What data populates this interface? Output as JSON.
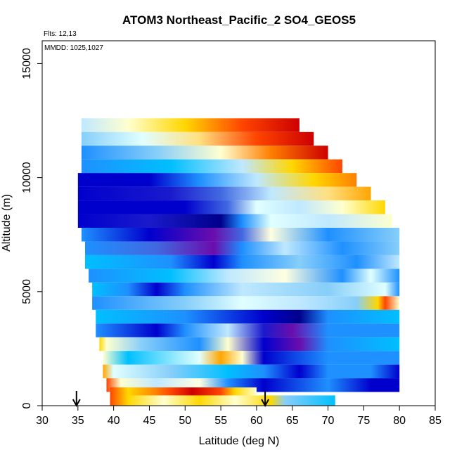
{
  "chart_data": {
    "type": "heatmap",
    "title": "ATOM3 Northeast_Pacific_2 SO4_GEOS5",
    "flights_label": "Flts: 12,13",
    "dates_label": "MMDD: 1025,1027",
    "xlabel": "Latitude (deg N)",
    "ylabel": "Altitude (m)",
    "xlim": [
      30,
      85
    ],
    "ylim": [
      0,
      16000
    ],
    "x_ticks": [
      30,
      35,
      40,
      45,
      50,
      55,
      60,
      65,
      70,
      75,
      80,
      85
    ],
    "y_ticks": [
      0,
      5000,
      10000,
      15000
    ],
    "grid": false,
    "legend": "none",
    "colors": {
      "very_low": "#0000cd",
      "low": "#1e90ff",
      "mid_low": "#00bfff",
      "mid": "#e0ffff",
      "mid_high": "#ffd700",
      "high": "#ff4500",
      "very_high": "#cd0000",
      "dark_purple": "#6a0dad"
    },
    "track_markers": [
      {
        "latitude": 34.8,
        "altitude": 0
      },
      {
        "latitude": 61.2,
        "altitude": 0
      }
    ],
    "rows": [
      {
        "altitude": 12300,
        "lat_min": 35.5,
        "lat_max": 66.0,
        "stops": [
          [
            35.5,
            "#bfe8ff"
          ],
          [
            42,
            "#ffffd0"
          ],
          [
            50,
            "#ffd700"
          ],
          [
            58,
            "#ff4500"
          ],
          [
            66,
            "#cd0000"
          ]
        ]
      },
      {
        "altitude": 11700,
        "lat_min": 35.5,
        "lat_max": 68.0,
        "stops": [
          [
            35.5,
            "#87cefa"
          ],
          [
            44,
            "#e0ffff"
          ],
          [
            52,
            "#ffe080"
          ],
          [
            60,
            "#ff4500"
          ],
          [
            68,
            "#cd0000"
          ]
        ]
      },
      {
        "altitude": 11100,
        "lat_min": 35.5,
        "lat_max": 70.0,
        "stops": [
          [
            35.5,
            "#1e90ff"
          ],
          [
            46,
            "#87cefa"
          ],
          [
            55,
            "#ffffd0"
          ],
          [
            62,
            "#ff7f00"
          ],
          [
            70,
            "#cd0000"
          ]
        ]
      },
      {
        "altitude": 10500,
        "lat_min": 35.5,
        "lat_max": 72.0,
        "stops": [
          [
            35.5,
            "#1e90ff"
          ],
          [
            48,
            "#00bfff"
          ],
          [
            58,
            "#bfe8ff"
          ],
          [
            65,
            "#ffd700"
          ],
          [
            72,
            "#ff4500"
          ]
        ]
      },
      {
        "altitude": 9900,
        "lat_min": 35.0,
        "lat_max": 74.0,
        "stops": [
          [
            35,
            "#0000cd"
          ],
          [
            45,
            "#0000cd"
          ],
          [
            52,
            "#1e90ff"
          ],
          [
            60,
            "#bfe8ff"
          ],
          [
            68,
            "#ffd700"
          ],
          [
            74,
            "#ff7f00"
          ]
        ]
      },
      {
        "altitude": 9300,
        "lat_min": 35.0,
        "lat_max": 76.0,
        "stops": [
          [
            35,
            "#0000cd"
          ],
          [
            48,
            "#1a1acd"
          ],
          [
            55,
            "#4169e1"
          ],
          [
            62,
            "#bfe8ff"
          ],
          [
            70,
            "#ffe080"
          ],
          [
            76,
            "#ffa500"
          ]
        ]
      },
      {
        "altitude": 8700,
        "lat_min": 35.0,
        "lat_max": 78.0,
        "stops": [
          [
            35,
            "#0000cd"
          ],
          [
            50,
            "#0000cd"
          ],
          [
            56,
            "#4169e1"
          ],
          [
            60,
            "#e0ffff"
          ],
          [
            66,
            "#bfe8ff"
          ],
          [
            72,
            "#ffffd0"
          ],
          [
            78,
            "#ffd700"
          ]
        ]
      },
      {
        "altitude": 8100,
        "lat_min": 35.0,
        "lat_max": 79.0,
        "stops": [
          [
            35,
            "#0000cd"
          ],
          [
            45,
            "#1a1acd"
          ],
          [
            55,
            "#00008b"
          ],
          [
            58,
            "#1e90ff"
          ],
          [
            62,
            "#e0ffff"
          ],
          [
            70,
            "#bfe8ff"
          ],
          [
            79,
            "#ffffd0"
          ]
        ]
      },
      {
        "altitude": 7500,
        "lat_min": 35.5,
        "lat_max": 80.0,
        "stops": [
          [
            35.5,
            "#1e90ff"
          ],
          [
            45,
            "#0000cd"
          ],
          [
            54,
            "#6a0dad"
          ],
          [
            58,
            "#4169e1"
          ],
          [
            62,
            "#ffffe0"
          ],
          [
            70,
            "#1e90ff"
          ],
          [
            80,
            "#87cefa"
          ]
        ]
      },
      {
        "altitude": 6900,
        "lat_min": 36.0,
        "lat_max": 80.0,
        "stops": [
          [
            36,
            "#1e90ff"
          ],
          [
            46,
            "#4169e1"
          ],
          [
            54,
            "#6a0dad"
          ],
          [
            58,
            "#1e90ff"
          ],
          [
            64,
            "#bfe8ff"
          ],
          [
            72,
            "#1e90ff"
          ],
          [
            80,
            "#87cefa"
          ]
        ]
      },
      {
        "altitude": 6300,
        "lat_min": 36.0,
        "lat_max": 80.0,
        "stops": [
          [
            36,
            "#00bfff"
          ],
          [
            48,
            "#1e90ff"
          ],
          [
            54,
            "#0000cd"
          ],
          [
            58,
            "#1e90ff"
          ],
          [
            66,
            "#87cefa"
          ],
          [
            74,
            "#1e90ff"
          ],
          [
            80,
            "#bfe8ff"
          ]
        ]
      },
      {
        "altitude": 5700,
        "lat_min": 36.5,
        "lat_max": 80.0,
        "stops": [
          [
            36.5,
            "#1e90ff"
          ],
          [
            48,
            "#00bfff"
          ],
          [
            56,
            "#bfe8ff"
          ],
          [
            64,
            "#ffffe0"
          ],
          [
            72,
            "#1e90ff"
          ],
          [
            76,
            "#e0ffff"
          ],
          [
            80,
            "#1e90ff"
          ]
        ]
      },
      {
        "altitude": 5100,
        "lat_min": 37.0,
        "lat_max": 80.0,
        "stops": [
          [
            37,
            "#00bfff"
          ],
          [
            42,
            "#1e90ff"
          ],
          [
            46,
            "#0000cd"
          ],
          [
            50,
            "#1e90ff"
          ],
          [
            58,
            "#bfe8ff"
          ],
          [
            70,
            "#87cefa"
          ],
          [
            78,
            "#e0ffff"
          ],
          [
            80,
            "#1e90ff"
          ]
        ]
      },
      {
        "altitude": 4500,
        "lat_min": 37.0,
        "lat_max": 80.0,
        "stops": [
          [
            37,
            "#1e90ff"
          ],
          [
            50,
            "#87cefa"
          ],
          [
            58,
            "#e0ffff"
          ],
          [
            66,
            "#bfe8ff"
          ],
          [
            74,
            "#87cefa"
          ],
          [
            77,
            "#ffd700"
          ],
          [
            78,
            "#ff4500"
          ],
          [
            80,
            "#ffffd0"
          ]
        ]
      },
      {
        "altitude": 3900,
        "lat_min": 37.5,
        "lat_max": 80.0,
        "stops": [
          [
            37.5,
            "#00bfff"
          ],
          [
            50,
            "#1e90ff"
          ],
          [
            61,
            "#0000cd"
          ],
          [
            66,
            "#00008b"
          ],
          [
            70,
            "#1e90ff"
          ],
          [
            80,
            "#00bfff"
          ]
        ]
      },
      {
        "altitude": 3300,
        "lat_min": 37.5,
        "lat_max": 80.0,
        "stops": [
          [
            37.5,
            "#1e90ff"
          ],
          [
            46,
            "#0000cd"
          ],
          [
            50,
            "#1e90ff"
          ],
          [
            56,
            "#bfe8ff"
          ],
          [
            61,
            "#1a1acd"
          ],
          [
            65,
            "#6a0dad"
          ],
          [
            70,
            "#1e90ff"
          ],
          [
            80,
            "#1e90ff"
          ]
        ]
      },
      {
        "altitude": 2700,
        "lat_min": 38.0,
        "lat_max": 80.0,
        "stops": [
          [
            38,
            "#ffd700"
          ],
          [
            39,
            "#ffffd0"
          ],
          [
            44,
            "#87cefa"
          ],
          [
            52,
            "#1e90ff"
          ],
          [
            56,
            "#ffffd0"
          ],
          [
            61,
            "#0000cd"
          ],
          [
            66,
            "#6a0dad"
          ],
          [
            70,
            "#1e90ff"
          ],
          [
            80,
            "#00bfff"
          ]
        ]
      },
      {
        "altitude": 2100,
        "lat_min": 38.5,
        "lat_max": 80.0,
        "stops": [
          [
            38.5,
            "#ffffd0"
          ],
          [
            42,
            "#00bfff"
          ],
          [
            52,
            "#e0ffff"
          ],
          [
            55,
            "#ffa500"
          ],
          [
            58,
            "#ffffd0"
          ],
          [
            61,
            "#0000cd"
          ],
          [
            70,
            "#1e90ff"
          ],
          [
            80,
            "#1e90ff"
          ]
        ]
      },
      {
        "altitude": 1500,
        "lat_min": 38.5,
        "lat_max": 80.0,
        "stops": [
          [
            38.5,
            "#ffa500"
          ],
          [
            40,
            "#e0ffff"
          ],
          [
            48,
            "#87cefa"
          ],
          [
            56,
            "#00bfff"
          ],
          [
            61,
            "#1e90ff"
          ],
          [
            66,
            "#0000cd"
          ],
          [
            70,
            "#1e90ff"
          ],
          [
            76,
            "#1e90ff"
          ],
          [
            80,
            "#0000cd"
          ]
        ]
      },
      {
        "altitude": 900,
        "lat_min": 39.0,
        "lat_max": 80.0,
        "stops": [
          [
            39,
            "#ff4500"
          ],
          [
            41,
            "#ffffd0"
          ],
          [
            46,
            "#bfe8ff"
          ],
          [
            52,
            "#ffffe0"
          ],
          [
            56,
            "#1e90ff"
          ],
          [
            61,
            "#0000cd"
          ],
          [
            70,
            "#1e90ff"
          ],
          [
            76,
            "#0000cd"
          ],
          [
            80,
            "#0000cd"
          ]
        ]
      },
      {
        "altitude": 500,
        "lat_min": 39.5,
        "lat_max": 60.0,
        "stops": [
          [
            39.5,
            "#ff4500"
          ],
          [
            42,
            "#ffd700"
          ],
          [
            46,
            "#ff7f00"
          ],
          [
            48,
            "#ff4500"
          ],
          [
            51,
            "#cd0000"
          ],
          [
            55,
            "#ff4500"
          ],
          [
            57,
            "#ffd700"
          ],
          [
            60,
            "#ffffd0"
          ]
        ]
      },
      {
        "altitude": 150,
        "lat_min": 39.5,
        "lat_max": 71.0,
        "stops": [
          [
            39.5,
            "#ff4500"
          ],
          [
            42,
            "#ffd700"
          ],
          [
            47,
            "#ffffd0"
          ],
          [
            52,
            "#ffd700"
          ],
          [
            57,
            "#ffffd0"
          ],
          [
            62,
            "#ffd700"
          ],
          [
            64,
            "#87cefa"
          ],
          [
            71,
            "#00bfff"
          ]
        ]
      }
    ]
  }
}
